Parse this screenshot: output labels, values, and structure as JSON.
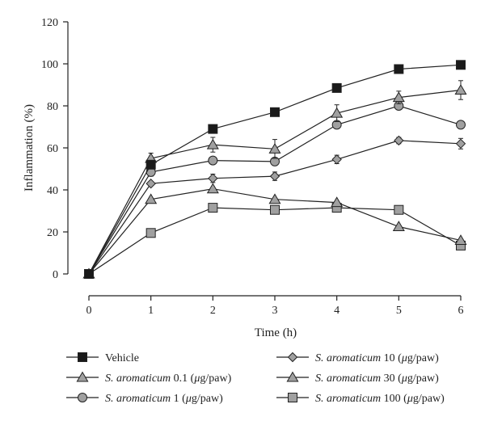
{
  "chart_data": {
    "type": "line",
    "xlabel": "Time (h)",
    "ylabel": "Inflammation (%)",
    "xlim": [
      0,
      6
    ],
    "ylim": [
      0,
      120
    ],
    "x_ticks": [
      0,
      1,
      2,
      3,
      4,
      5,
      6
    ],
    "y_ticks": [
      0,
      20,
      40,
      60,
      80,
      100,
      120
    ],
    "grid": false,
    "legend_position": "bottom",
    "series": [
      {
        "name": "Vehicle",
        "legend_parts": [
          {
            "text": "Vehicle",
            "italic": false
          }
        ],
        "marker": "square",
        "marker_color": "#1a1a1a",
        "x": [
          0,
          1,
          2,
          3,
          4,
          5,
          6
        ],
        "y": [
          0,
          52,
          69,
          77,
          88.5,
          97.5,
          99.5
        ],
        "err": [
          0,
          0,
          1.5,
          0,
          0,
          0,
          0
        ]
      },
      {
        "name": "S. aromaticum 0.1 (μg/paw)",
        "legend_parts": [
          {
            "text": "S. aromaticum",
            "italic": true
          },
          {
            "text": " 0.1 (",
            "italic": false
          },
          {
            "text": "μ",
            "italic": true
          },
          {
            "text": "g/paw)",
            "italic": false
          }
        ],
        "marker": "triangle",
        "marker_color": "#a0a0a0",
        "x": [
          0,
          1,
          2,
          3,
          4,
          5,
          6
        ],
        "y": [
          0,
          55,
          61.5,
          59.5,
          76.5,
          84,
          87.5
        ],
        "err": [
          0,
          2.5,
          3.5,
          4.5,
          4,
          3,
          4.5
        ]
      },
      {
        "name": "S. aromaticum 1 (μg/paw)",
        "legend_parts": [
          {
            "text": "S. aromaticum",
            "italic": true
          },
          {
            "text": " 1 (",
            "italic": false
          },
          {
            "text": "μ",
            "italic": true
          },
          {
            "text": "g/paw)",
            "italic": false
          }
        ],
        "marker": "circle",
        "marker_color": "#a0a0a0",
        "x": [
          0,
          1,
          2,
          3,
          4,
          5,
          6
        ],
        "y": [
          0,
          48.5,
          54,
          53.5,
          71,
          80,
          71
        ],
        "err": [
          0,
          2,
          0,
          0,
          1.5,
          1.5,
          1
        ]
      },
      {
        "name": "S. aromaticum 10 (μg/paw)",
        "legend_parts": [
          {
            "text": "S. aromaticum",
            "italic": true
          },
          {
            "text": " 10 (",
            "italic": false
          },
          {
            "text": "μ",
            "italic": true
          },
          {
            "text": "g/paw)",
            "italic": false
          }
        ],
        "marker": "diamond",
        "marker_color": "#a0a0a0",
        "x": [
          0,
          1,
          2,
          3,
          4,
          5,
          6
        ],
        "y": [
          0,
          43,
          45.5,
          46.5,
          54.5,
          63.5,
          62
        ],
        "err": [
          0,
          0,
          2,
          2,
          2,
          1.5,
          2.5
        ]
      },
      {
        "name": "S. aromaticum 30 (μg/paw)",
        "legend_parts": [
          {
            "text": "S. aromaticum",
            "italic": true
          },
          {
            "text": " 30 (",
            "italic": false
          },
          {
            "text": "μ",
            "italic": true
          },
          {
            "text": "g/paw)",
            "italic": false
          }
        ],
        "marker": "triangle",
        "marker_color": "#a0a0a0",
        "x": [
          0,
          1,
          2,
          3,
          4,
          5,
          6
        ],
        "y": [
          0,
          35.5,
          40.5,
          35.5,
          34,
          22.5,
          16
        ],
        "err": [
          0,
          0,
          0,
          0,
          0,
          0,
          0
        ]
      },
      {
        "name": "S. aromaticum 100 (μg/paw)",
        "legend_parts": [
          {
            "text": "S. aromaticum",
            "italic": true
          },
          {
            "text": " 100 (",
            "italic": false
          },
          {
            "text": "μ",
            "italic": true
          },
          {
            "text": "g/paw)",
            "italic": false
          }
        ],
        "marker": "square",
        "marker_color": "#a0a0a0",
        "x": [
          0,
          1,
          2,
          3,
          4,
          5,
          6
        ],
        "y": [
          0,
          19.5,
          31.5,
          30.5,
          31.5,
          30.5,
          13.5
        ],
        "err": [
          0,
          0,
          0,
          0,
          0,
          0,
          0
        ]
      }
    ]
  }
}
